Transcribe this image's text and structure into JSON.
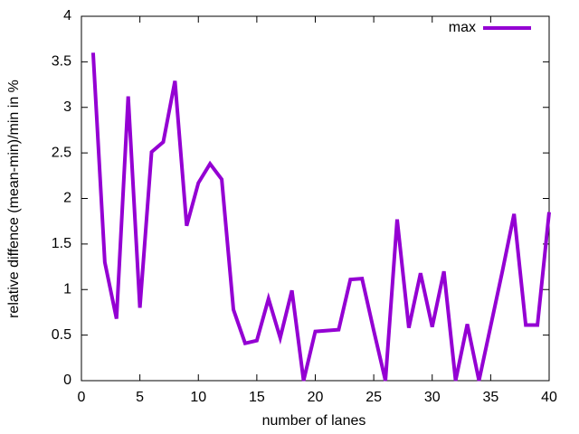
{
  "chart_data": {
    "type": "line",
    "xlabel": "number of lanes",
    "ylabel": "relative diffence (mean-min)/min in %",
    "x": [
      1,
      2,
      3,
      4,
      5,
      6,
      7,
      8,
      9,
      10,
      11,
      12,
      13,
      14,
      15,
      16,
      17,
      18,
      19,
      20,
      21,
      22,
      23,
      24,
      25,
      26,
      27,
      28,
      29,
      30,
      31,
      32,
      33,
      34,
      35,
      36,
      37,
      38,
      39,
      40
    ],
    "series": [
      {
        "name": "max",
        "color": "#9400d3",
        "values": [
          3.6,
          1.3,
          0.68,
          3.12,
          0.8,
          2.51,
          2.62,
          3.29,
          1.7,
          2.17,
          2.38,
          2.21,
          0.78,
          0.41,
          0.44,
          0.9,
          0.47,
          0.99,
          0,
          0.54,
          0.55,
          0.56,
          1.11,
          1.12,
          0.55,
          0,
          1.77,
          0.58,
          1.18,
          0.59,
          1.2,
          0,
          0.62,
          0,
          0.6,
          1.2,
          1.83,
          0.61,
          0.61,
          1.85
        ]
      }
    ],
    "xlim": [
      0,
      40
    ],
    "xticks": [
      0,
      5,
      10,
      15,
      20,
      25,
      30,
      35,
      40
    ],
    "ylim": [
      0,
      4
    ],
    "yticks": [
      0,
      0.5,
      1,
      1.5,
      2,
      2.5,
      3,
      3.5,
      4
    ],
    "legend": "upper right"
  }
}
